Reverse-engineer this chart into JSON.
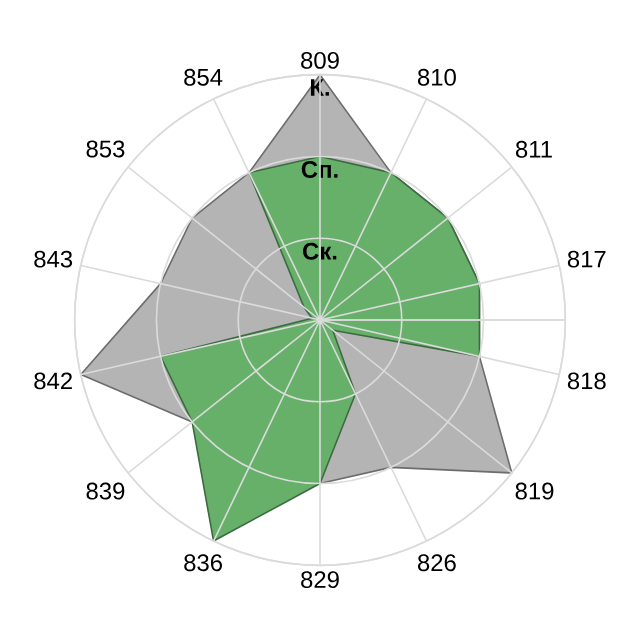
{
  "chart_data": {
    "type": "radar",
    "categories": [
      "809",
      "810",
      "811",
      "817",
      "818",
      "819",
      "826",
      "829",
      "836",
      "839",
      "842",
      "843",
      "853",
      "854"
    ],
    "series": [
      {
        "color": "#b4b4b4",
        "values": [
          3.0,
          2.0,
          2.0,
          2.0,
          2.0,
          3.0,
          2.0,
          2.0,
          null,
          2.0,
          3.0,
          2.0,
          2.0,
          2.0
        ]
      },
      {
        "color": "#66b06a",
        "values": [
          2.0,
          2.0,
          2.0,
          2.0,
          2.0,
          0.2,
          1.0,
          2.0,
          3.0,
          2.0,
          2.0,
          0.1,
          0.25,
          2.0
        ]
      }
    ],
    "ylim": [
      0,
      3
    ],
    "yticks": [
      {
        "value": 1,
        "label": "Ск."
      },
      {
        "value": 2,
        "label": "Сп."
      },
      {
        "value": 3,
        "label": "К."
      }
    ],
    "grid": true
  }
}
